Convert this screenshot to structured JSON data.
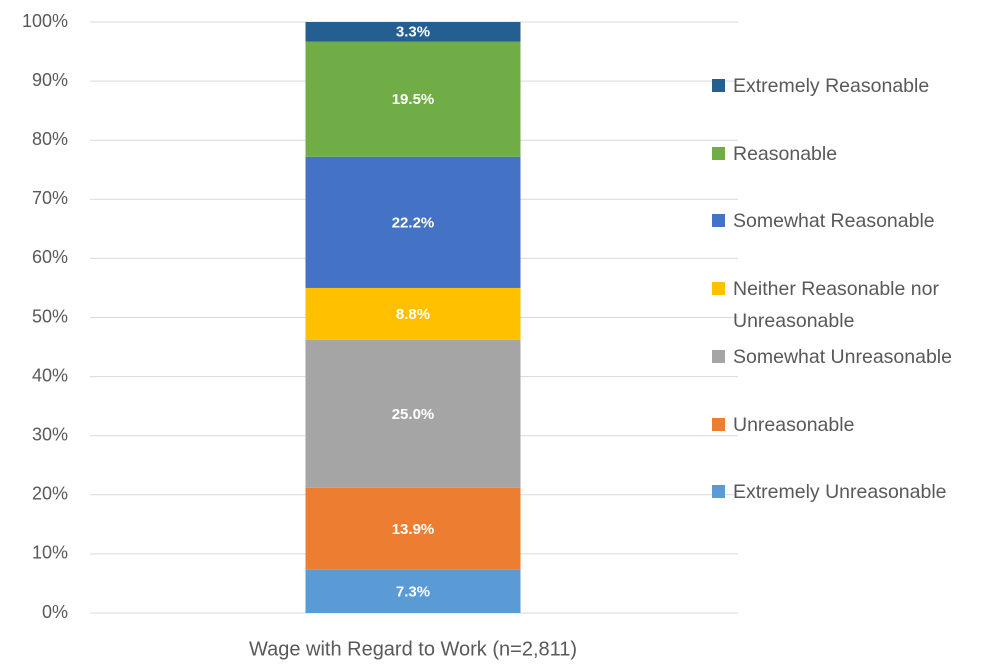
{
  "chart_data": {
    "type": "stacked_bar",
    "categories": [
      "Wage with Regard to Work (n=2,811)"
    ],
    "series": [
      {
        "name": "Extremely Unreasonable",
        "color": "#5b9bd5",
        "values": [
          7.3
        ],
        "value_labels": [
          "7.3%"
        ]
      },
      {
        "name": "Unreasonable",
        "color": "#ed7d31",
        "values": [
          13.9
        ],
        "value_labels": [
          "13.9%"
        ]
      },
      {
        "name": "Somewhat Unreasonable",
        "color": "#a5a5a5",
        "values": [
          25.0
        ],
        "value_labels": [
          "25.0%"
        ]
      },
      {
        "name": "Neither Reasonable nor Unreasonable",
        "color": "#ffc000",
        "values": [
          8.8
        ],
        "value_labels": [
          "8.8%"
        ]
      },
      {
        "name": "Somewhat Reasonable",
        "color": "#4472c4",
        "values": [
          22.2
        ],
        "value_labels": [
          "22.2%"
        ]
      },
      {
        "name": "Reasonable",
        "color": "#70ad47",
        "values": [
          19.5
        ],
        "value_labels": [
          "19.5%"
        ]
      },
      {
        "name": "Extremely Reasonable",
        "color": "#255e91",
        "values": [
          3.3
        ],
        "value_labels": [
          "3.3%"
        ]
      }
    ],
    "ylim": [
      0,
      100
    ],
    "yticks": [
      {
        "value": 0,
        "label": "0%"
      },
      {
        "value": 10,
        "label": "10%"
      },
      {
        "value": 20,
        "label": "20%"
      },
      {
        "value": 30,
        "label": "30%"
      },
      {
        "value": 40,
        "label": "40%"
      },
      {
        "value": 50,
        "label": "50%"
      },
      {
        "value": 60,
        "label": "60%"
      },
      {
        "value": 70,
        "label": "70%"
      },
      {
        "value": 80,
        "label": "80%"
      },
      {
        "value": 90,
        "label": "90%"
      },
      {
        "value": 100,
        "label": "100%"
      }
    ],
    "grid": true,
    "legend": "right"
  }
}
